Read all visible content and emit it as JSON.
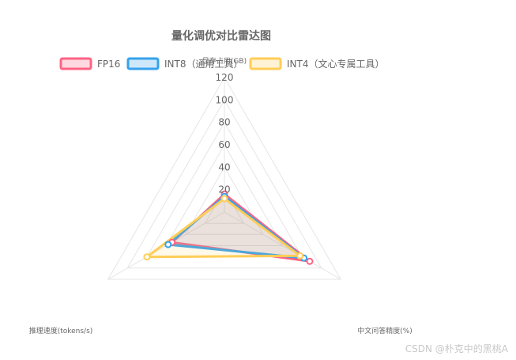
{
  "chart_data": {
    "type": "radar",
    "title": "量化调优对比雷达图",
    "axes": [
      "显存占用(GB)",
      "中文问答精度(%)",
      "推理速度(tokens/s)"
    ],
    "rlim": [
      0,
      120
    ],
    "ticks": [
      20,
      40,
      60,
      80,
      100,
      120
    ],
    "grid": true,
    "legend_position": "top",
    "series": [
      {
        "name": "FP16",
        "values": [
          16,
          88,
          54
        ],
        "color": "#ff6384"
      },
      {
        "name": "INT8（通用工具）",
        "values": [
          14,
          82,
          58
        ],
        "color": "#36a2eb"
      },
      {
        "name": "INT4（文心专属工具）",
        "values": [
          12,
          78,
          80
        ],
        "color": "#ffcd56"
      }
    ]
  },
  "watermark": "CSDN @朴克中的黑桃A"
}
